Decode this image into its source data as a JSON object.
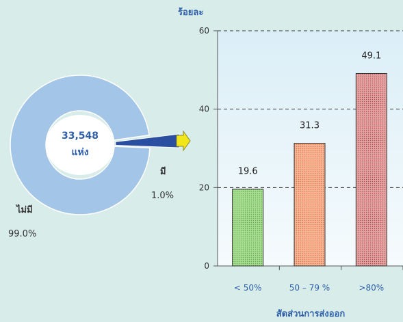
{
  "chart_data": [
    {
      "type": "pie",
      "center_label": "33,548",
      "center_unit": "แห่ง",
      "slices": [
        {
          "label": "ไม่มี",
          "percent_label": "99.0%",
          "value": 99.0,
          "color": "#a3c6e8"
        },
        {
          "label": "มี",
          "percent_label": "1.0%",
          "value": 1.0,
          "color": "#2b4fa0"
        }
      ]
    },
    {
      "type": "bar",
      "title": "",
      "ylabel": "ร้อยละ",
      "xlabel": "สัดส่วนการส่งออก",
      "categories": [
        "< 50%",
        "50 – 79 %",
        ">80%"
      ],
      "values": [
        19.6,
        31.3,
        49.1
      ],
      "value_labels": [
        "19.6",
        "31.3",
        "49.1"
      ],
      "bar_colors": [
        "#8fd07a",
        "#f3a07d",
        "#d07a7a"
      ],
      "ylim": [
        0,
        60
      ],
      "yticks": [
        0,
        20,
        40,
        60
      ],
      "grid": true
    }
  ],
  "colors": {
    "label_blue": "#2e5fa8",
    "arrow_yellow": "#f0e619",
    "plot_bg_top": "#dbeef7",
    "plot_bg_bottom": "#f6fbfd"
  }
}
